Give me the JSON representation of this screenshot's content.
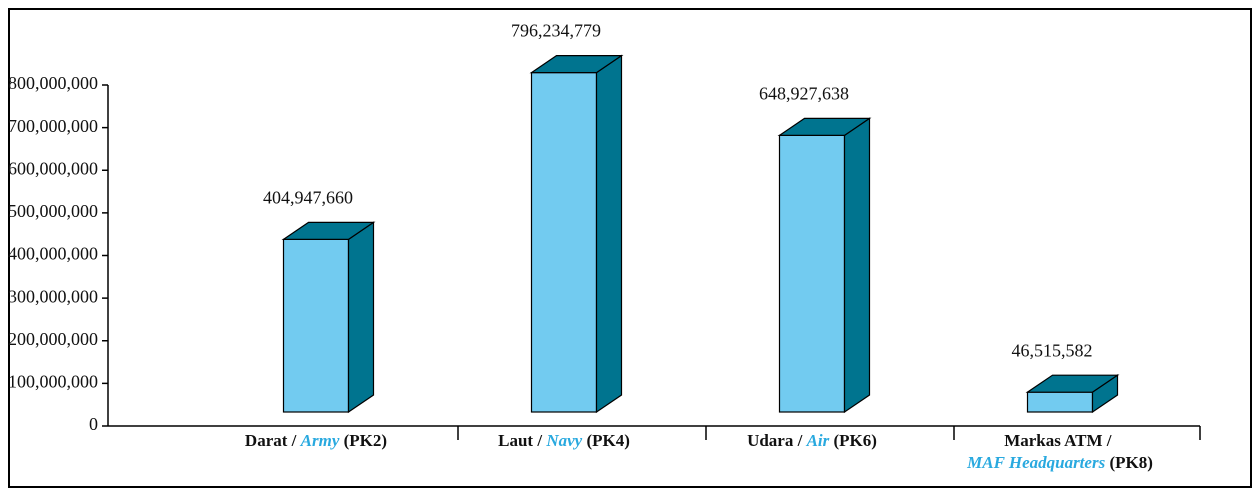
{
  "chart_data": {
    "type": "bar3d",
    "categories": [
      "Darat / Army (PK2)",
      "Laut / Navy (PK4)",
      "Udara / Air (PK6)",
      "Markas ATM / MAF Headquarters (PK8)"
    ],
    "values": [
      404947660,
      796234779,
      648927638,
      46515582
    ],
    "value_labels": [
      "404,947,660",
      "796,234,779",
      "648,927,638",
      "46,515,582"
    ],
    "color": "#72cbf0",
    "side_color": "#00748f",
    "accent_color": "#29a9df",
    "ylim": [
      0,
      800000000
    ],
    "yticks": [
      0,
      {
        "value": 100000000,
        "label": "100,000,000"
      },
      {
        "value": 200000000,
        "label": "200,000,000"
      },
      {
        "value": 300000000,
        "label": "300,000,000"
      },
      {
        "value": 400000000,
        "label": "400,000,000"
      },
      {
        "value": 500000000,
        "label": "500,000,000"
      },
      {
        "value": 600000000,
        "label": "600,000,000"
      },
      {
        "value": 700000000,
        "label": "700,000,000"
      },
      {
        "value": 800000000,
        "label": "800,000,000"
      }
    ]
  }
}
